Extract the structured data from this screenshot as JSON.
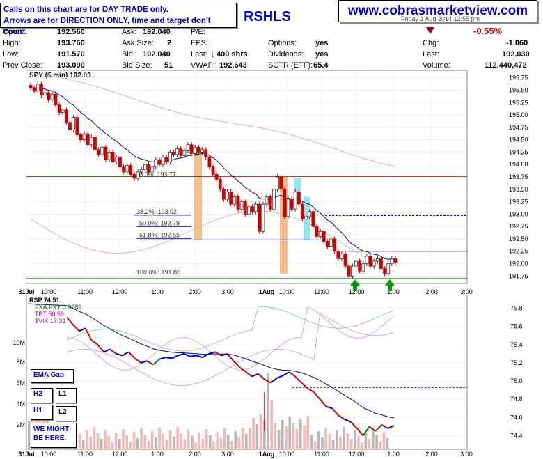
{
  "header": {
    "notice_line1": "Calls on this chart are for DAY TRADE only.",
    "notice_line2": "Arrows are for DIRECTION ONLY, time and target don't count.",
    "website": "www.cobrasmarketview.com",
    "symbol_fragment": "RSHLS",
    "date_fragment": "Friday 1 Aug 2014 12:55 pm",
    "percent_change": "-0.55%"
  },
  "quote": {
    "open_label": "Open:",
    "open": "192.560",
    "high_label": "High:",
    "high": "193.760",
    "low_label": "Low:",
    "low": "191.570",
    "prev_label": "Prev Close:",
    "prev": "193.090",
    "ask_label": "Ask:",
    "ask": "192.040",
    "asksize_label": "Ask Size:",
    "asksize": "2",
    "bid_label": "Bid:",
    "bid": "192.040",
    "bidsize_label": "Bid Size:",
    "bidsize": "51",
    "pe_label": "P/E:",
    "pe": "",
    "eps_label": "EPS:",
    "eps": "",
    "last_label": "Last:",
    "last_trade": "400 shrs",
    "vwap_label": "VWAP:",
    "vwap": "192.643",
    "options_label": "Options:",
    "options": "yes",
    "dividends_label": "Dividends:",
    "dividends": "yes",
    "sctr_label": "SCTR (ETF):",
    "sctr": "65.4",
    "chg_label": "Chg:",
    "chg": "-1.060",
    "last2_label": "Last:",
    "last2": "192.030",
    "volume_label": "Volume:",
    "volume": "112,440,472"
  },
  "left_boxes": {
    "ema_gap": "EMA Gap",
    "h2": "H2",
    "l1": "L1",
    "h1": "H1",
    "l2": "L2",
    "note": "WE MIGHT BE HERE."
  },
  "colors": {
    "up": "#008000",
    "down": "#cc0000",
    "ema": "#1a1a8c",
    "ma_slow": "#e0b0b0",
    "fib_zone_orange": "#f7be8c",
    "fib_zone_cyan": "#8ee8ee",
    "vol_pink": "#f4b8b8",
    "vol_gray": "#b8b8b8",
    "rsp_blue": "#0000cc",
    "fxa": "#99cc99",
    "tbt": "#e0a0e0",
    "vix": "#c0a8f0"
  },
  "chart_data": [
    {
      "type": "candlestick",
      "title": "SPY (5 min) 192.03",
      "y_ticks": [
        "195.75",
        "195.50",
        "195.25",
        "195.00",
        "194.75",
        "194.50",
        "194.25",
        "194.00",
        "193.75",
        "193.50",
        "193.25",
        "193.00",
        "192.75",
        "192.50",
        "192.25",
        "192.00",
        "191.75"
      ],
      "ylim": [
        191.6,
        195.9
      ],
      "x_ticks": [
        "31Jul",
        "10:00",
        "11:00",
        "12:00",
        "1:00",
        "2:00",
        "3:00",
        "1Aug",
        "10:00",
        "11:00",
        "12:00",
        "1:00",
        "2:00",
        "3:00"
      ],
      "closes": [
        195.55,
        195.48,
        195.62,
        195.4,
        195.45,
        195.3,
        195.42,
        195.2,
        195.05,
        195.1,
        194.85,
        194.7,
        194.95,
        194.6,
        194.5,
        194.62,
        194.4,
        194.55,
        194.3,
        194.2,
        194.35,
        194.1,
        194.25,
        194.05,
        194.15,
        193.95,
        193.85,
        193.98,
        193.8,
        193.72,
        193.85,
        193.9,
        194.0,
        193.85,
        193.95,
        194.1,
        194.0,
        194.15,
        194.05,
        194.25,
        194.2,
        194.32,
        194.18,
        194.28,
        194.4,
        194.22,
        194.35,
        194.25,
        194.3,
        194.15,
        193.95,
        193.8,
        193.7,
        193.5,
        193.3,
        193.45,
        193.2,
        193.35,
        193.1,
        193.25,
        193.0,
        193.15,
        193.05,
        193.2,
        192.65,
        193.2,
        193.35,
        193.1,
        193.5,
        193.75,
        193.5,
        192.95,
        193.3,
        193.1,
        193.45,
        193.2,
        192.9,
        192.95,
        193.05,
        192.75,
        192.55,
        192.65,
        192.45,
        192.35,
        192.5,
        192.25,
        192.1,
        192.2,
        191.95,
        191.75,
        191.95,
        192.05,
        191.85,
        192.0,
        192.15,
        191.95,
        192.05,
        192.1,
        191.9,
        191.8,
        192.0,
        192.1,
        192.03
      ],
      "fib_levels": [
        {
          "label": "0.0%: 193.77",
          "value": 193.77
        },
        {
          "label": "38.2%: 193.02",
          "value": 193.02
        },
        {
          "label": "50.0%: 192.79",
          "value": 192.79
        },
        {
          "label": "61.8%: 192.55",
          "value": 192.55
        },
        {
          "label": "100.0%: 191.80",
          "value": 191.8
        }
      ],
      "horizontal_lines": [
        {
          "value": 193.76,
          "style": "solid",
          "color": "#b00000"
        },
        {
          "value": 192.97,
          "style": "dashed",
          "color": "#0000cc"
        },
        {
          "value": 192.48,
          "style": "solid",
          "color": "#0000aa"
        },
        {
          "value": 192.25,
          "style": "solid",
          "color": "#0000aa"
        },
        {
          "value": 191.7,
          "style": "solid",
          "color": "#008000"
        }
      ],
      "arrows": [
        "up",
        "up"
      ]
    },
    {
      "type": "line",
      "title": "RSP 74.51",
      "legend": [
        "FXA:FXY 0.9781",
        "TBT 58.59",
        "$VIX 17.31"
      ],
      "y_ticks": [
        "75.8",
        "75.6",
        "75.4",
        "75.2",
        "75.0",
        "74.8",
        "74.6",
        "74.4"
      ],
      "ylim": [
        74.25,
        75.95
      ],
      "volume_ticks": [
        "10M",
        "8M",
        "6M",
        "4M",
        "2M"
      ],
      "x_ticks": [
        "31Jul",
        "10:00",
        "11:00",
        "12:00",
        "1:00",
        "2:00",
        "3:00",
        "1Aug",
        "10:00",
        "11:00",
        "12:00",
        "1:00",
        "2:00",
        "3:00"
      ],
      "closes": [
        75.7,
        75.62,
        75.55,
        75.58,
        75.45,
        75.4,
        75.32,
        75.35,
        75.3,
        75.28,
        75.32,
        75.25,
        75.2,
        75.22,
        75.18,
        75.24,
        75.26,
        75.25,
        75.28,
        75.3,
        75.27,
        75.28,
        75.26,
        75.3,
        75.32,
        75.28,
        75.3,
        75.22,
        75.15,
        75.1,
        75.05,
        75.08,
        75.02,
        74.98,
        75.03,
        75.06,
        75.1,
        75.05,
        74.98,
        74.92,
        74.88,
        74.8,
        74.72,
        74.7,
        74.62,
        74.58,
        74.55,
        74.48,
        74.4,
        74.5,
        74.45,
        74.52,
        74.48,
        74.51
      ]
    }
  ]
}
